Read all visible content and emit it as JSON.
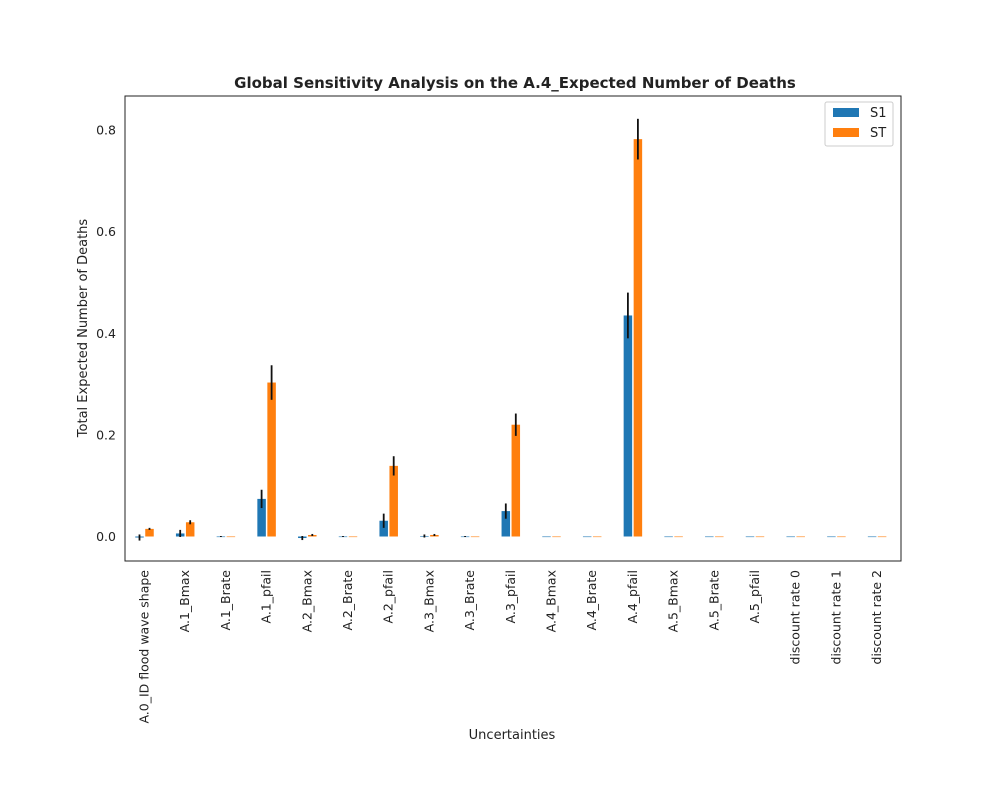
{
  "chart_data": {
    "type": "bar",
    "title": "Global Sensitivity Analysis on the A.4_Expected Number of Deaths",
    "xlabel": "Uncertainties",
    "ylabel": "Total Expected Number of Deaths",
    "ylim": [
      -0.045,
      0.865
    ],
    "yticks": [
      0.0,
      0.2,
      0.4,
      0.6,
      0.8
    ],
    "ytick_labels": [
      "0.0",
      "0.2",
      "0.4",
      "0.6",
      "0.8"
    ],
    "grid": false,
    "legend_position": "top-right",
    "categories": [
      "A.0_ID flood wave shape",
      "A.1_Bmax",
      "A.1_Brate",
      "A.1_pfail",
      "A.2_Bmax",
      "A.2_Brate",
      "A.2_pfail",
      "A.3_Bmax",
      "A.3_Brate",
      "A.3_pfail",
      "A.4_Bmax",
      "A.4_Brate",
      "A.4_pfail",
      "A.5_Bmax",
      "A.5_Brate",
      "A.5_pfail",
      "discount rate 0",
      "discount rate 1",
      "discount rate 2"
    ],
    "series": [
      {
        "name": "S1",
        "color": "#1f77b4",
        "values": [
          -0.002,
          0.006,
          0.0,
          0.074,
          -0.003,
          0.0,
          0.031,
          0.001,
          0.0,
          0.05,
          0.0,
          0.0,
          0.435,
          0.0,
          0.0,
          0.0,
          0.0,
          0.0,
          0.0
        ],
        "errors": [
          0.006,
          0.007,
          0.001,
          0.018,
          0.004,
          0.001,
          0.014,
          0.003,
          0.001,
          0.015,
          0.0,
          0.0,
          0.045,
          0.0,
          0.0,
          0.0,
          0.0,
          0.0,
          0.0
        ]
      },
      {
        "name": "ST",
        "color": "#ff7f0e",
        "values": [
          0.015,
          0.028,
          0.0,
          0.303,
          0.003,
          0.0,
          0.139,
          0.003,
          0.0,
          0.22,
          0.0,
          0.0,
          0.782,
          0.0,
          0.0,
          0.0,
          0.0,
          0.0,
          0.0
        ],
        "errors": [
          0.002,
          0.004,
          0.0,
          0.034,
          0.002,
          0.0,
          0.019,
          0.002,
          0.0,
          0.022,
          0.0,
          0.0,
          0.04,
          0.0,
          0.0,
          0.0,
          0.0,
          0.0,
          0.0
        ]
      }
    ]
  }
}
